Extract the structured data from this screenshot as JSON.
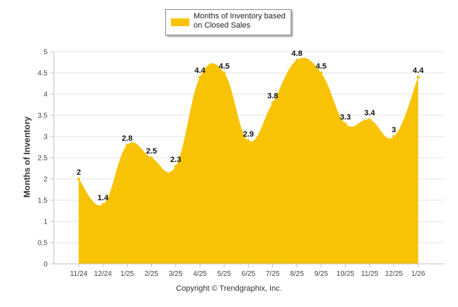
{
  "chart_data": {
    "type": "area",
    "title": "",
    "xlabel": "",
    "ylabel": "Months of Inventory",
    "categories": [
      "11/24",
      "12/24",
      "1/25",
      "2/25",
      "3/25",
      "4/25",
      "5/25",
      "6/25",
      "7/25",
      "8/25",
      "9/25",
      "10/25",
      "11/25",
      "12/25",
      "1/26"
    ],
    "series": [
      {
        "name": "Months of Inventory based on Closed Sales",
        "values": [
          2,
          1.4,
          2.8,
          2.5,
          2.3,
          4.4,
          4.5,
          2.9,
          3.8,
          4.8,
          4.5,
          3.3,
          3.4,
          3,
          4.4
        ],
        "labels": [
          "2",
          "1.4",
          "2.8",
          "2.5",
          "2.3",
          "4.4",
          "4.5",
          "2.9",
          "3.8",
          "4.8",
          "4.5",
          "3.3",
          "3.4",
          "3",
          "4.4"
        ],
        "color": "#f7c304"
      }
    ],
    "ylim": [
      0,
      5
    ],
    "yticks": [
      "0",
      "0.5",
      "1",
      "1.5",
      "2",
      "2.5",
      "3",
      "3.5",
      "4",
      "4.5",
      "5"
    ],
    "grid": true,
    "legend": {
      "position": "top-center",
      "label": "Months of Inventory based on Closed Sales"
    }
  },
  "legend": {
    "text_line1": "Months of Inventory based",
    "text_line2": "on Closed Sales"
  },
  "axis": {
    "ylabel": "Months of Inventory"
  },
  "footer": {
    "copyright": "Copyright © Trendgraphix, Inc."
  },
  "colors": {
    "area": "#f7c304",
    "grid": "#e6e6e6",
    "axis": "#c0c0c0"
  }
}
